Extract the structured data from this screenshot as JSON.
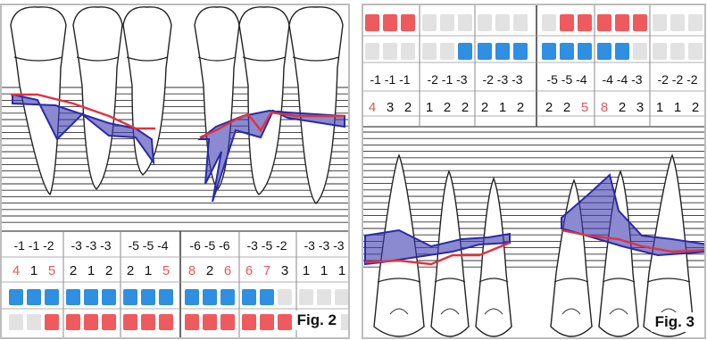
{
  "fig2": {
    "label": "Fig. 2",
    "groups": [
      {
        "depths": "-1 -1 -2",
        "pockets": [
          "4",
          "1",
          "5"
        ],
        "pocket_colors": [
          "red",
          "black",
          "red"
        ],
        "blue": [
          1,
          1,
          1
        ],
        "red": [
          0,
          0,
          1
        ]
      },
      {
        "depths": "-3 -3 -3",
        "pockets": [
          "2",
          "1",
          "2"
        ],
        "pocket_colors": [
          "black",
          "black",
          "black"
        ],
        "blue": [
          1,
          1,
          1
        ],
        "red": [
          1,
          1,
          1
        ]
      },
      {
        "depths": "-5 -5 -4",
        "pockets": [
          "2",
          "1",
          "5"
        ],
        "pocket_colors": [
          "black",
          "black",
          "red"
        ],
        "blue": [
          1,
          1,
          1
        ],
        "red": [
          1,
          1,
          1
        ]
      },
      {
        "depths": "-6 -5 -6",
        "pockets": [
          "8",
          "2",
          "6"
        ],
        "pocket_colors": [
          "red",
          "black",
          "red"
        ],
        "blue": [
          1,
          1,
          1
        ],
        "red": [
          1,
          1,
          1
        ]
      },
      {
        "depths": "-3 -5 -2",
        "pockets": [
          "6",
          "7",
          "3"
        ],
        "pocket_colors": [
          "red",
          "red",
          "black"
        ],
        "blue": [
          1,
          1,
          0
        ],
        "red": [
          1,
          1,
          1
        ]
      },
      {
        "depths": "-3 -3 -3",
        "pockets": [
          "1",
          "1",
          "1"
        ],
        "pocket_colors": [
          "black",
          "black",
          "black"
        ],
        "blue": [
          0,
          0,
          0
        ],
        "red": [
          0,
          0,
          0
        ]
      }
    ]
  },
  "fig3": {
    "label": "Fig. 3",
    "groups": [
      {
        "red": [
          1,
          1,
          1
        ],
        "blue": [
          0,
          0,
          0
        ],
        "depths": "-1 -1 -1",
        "pockets": [
          "4",
          "3",
          "2"
        ],
        "pocket_colors": [
          "red",
          "black",
          "black"
        ]
      },
      {
        "red": [
          0,
          0,
          0
        ],
        "blue": [
          0,
          0,
          1
        ],
        "depths": "-2 -1 -3",
        "pockets": [
          "1",
          "2",
          "2"
        ],
        "pocket_colors": [
          "black",
          "black",
          "black"
        ]
      },
      {
        "red": [
          0,
          0,
          0
        ],
        "blue": [
          1,
          1,
          1
        ],
        "depths": "-2 -3 -3",
        "pockets": [
          "2",
          "1",
          "2"
        ],
        "pocket_colors": [
          "black",
          "black",
          "black"
        ]
      },
      {
        "red": [
          0,
          1,
          1
        ],
        "blue": [
          1,
          1,
          1
        ],
        "depths": "-5 -5 -4",
        "pockets": [
          "2",
          "2",
          "5"
        ],
        "pocket_colors": [
          "black",
          "black",
          "red"
        ]
      },
      {
        "red": [
          1,
          1,
          1
        ],
        "blue": [
          1,
          1,
          0
        ],
        "depths": "-4 -4 -3",
        "pockets": [
          "8",
          "2",
          "3"
        ],
        "pocket_colors": [
          "red",
          "black",
          "black"
        ]
      },
      {
        "red": [
          0,
          0,
          0
        ],
        "blue": [
          0,
          0,
          0
        ],
        "depths": "-2 -2 -2",
        "pockets": [
          "1",
          "1",
          "2"
        ],
        "pocket_colors": [
          "black",
          "black",
          "black"
        ]
      }
    ]
  },
  "colors": {
    "red": "#e8575b",
    "black": "#111111",
    "blue_cell": "#2f8fe0",
    "red_cell": "#ef5a5f",
    "empty_cell": "#e2e2e2",
    "chart_fill": "#3d3bb0",
    "chart_red_line": "#e0333c"
  }
}
